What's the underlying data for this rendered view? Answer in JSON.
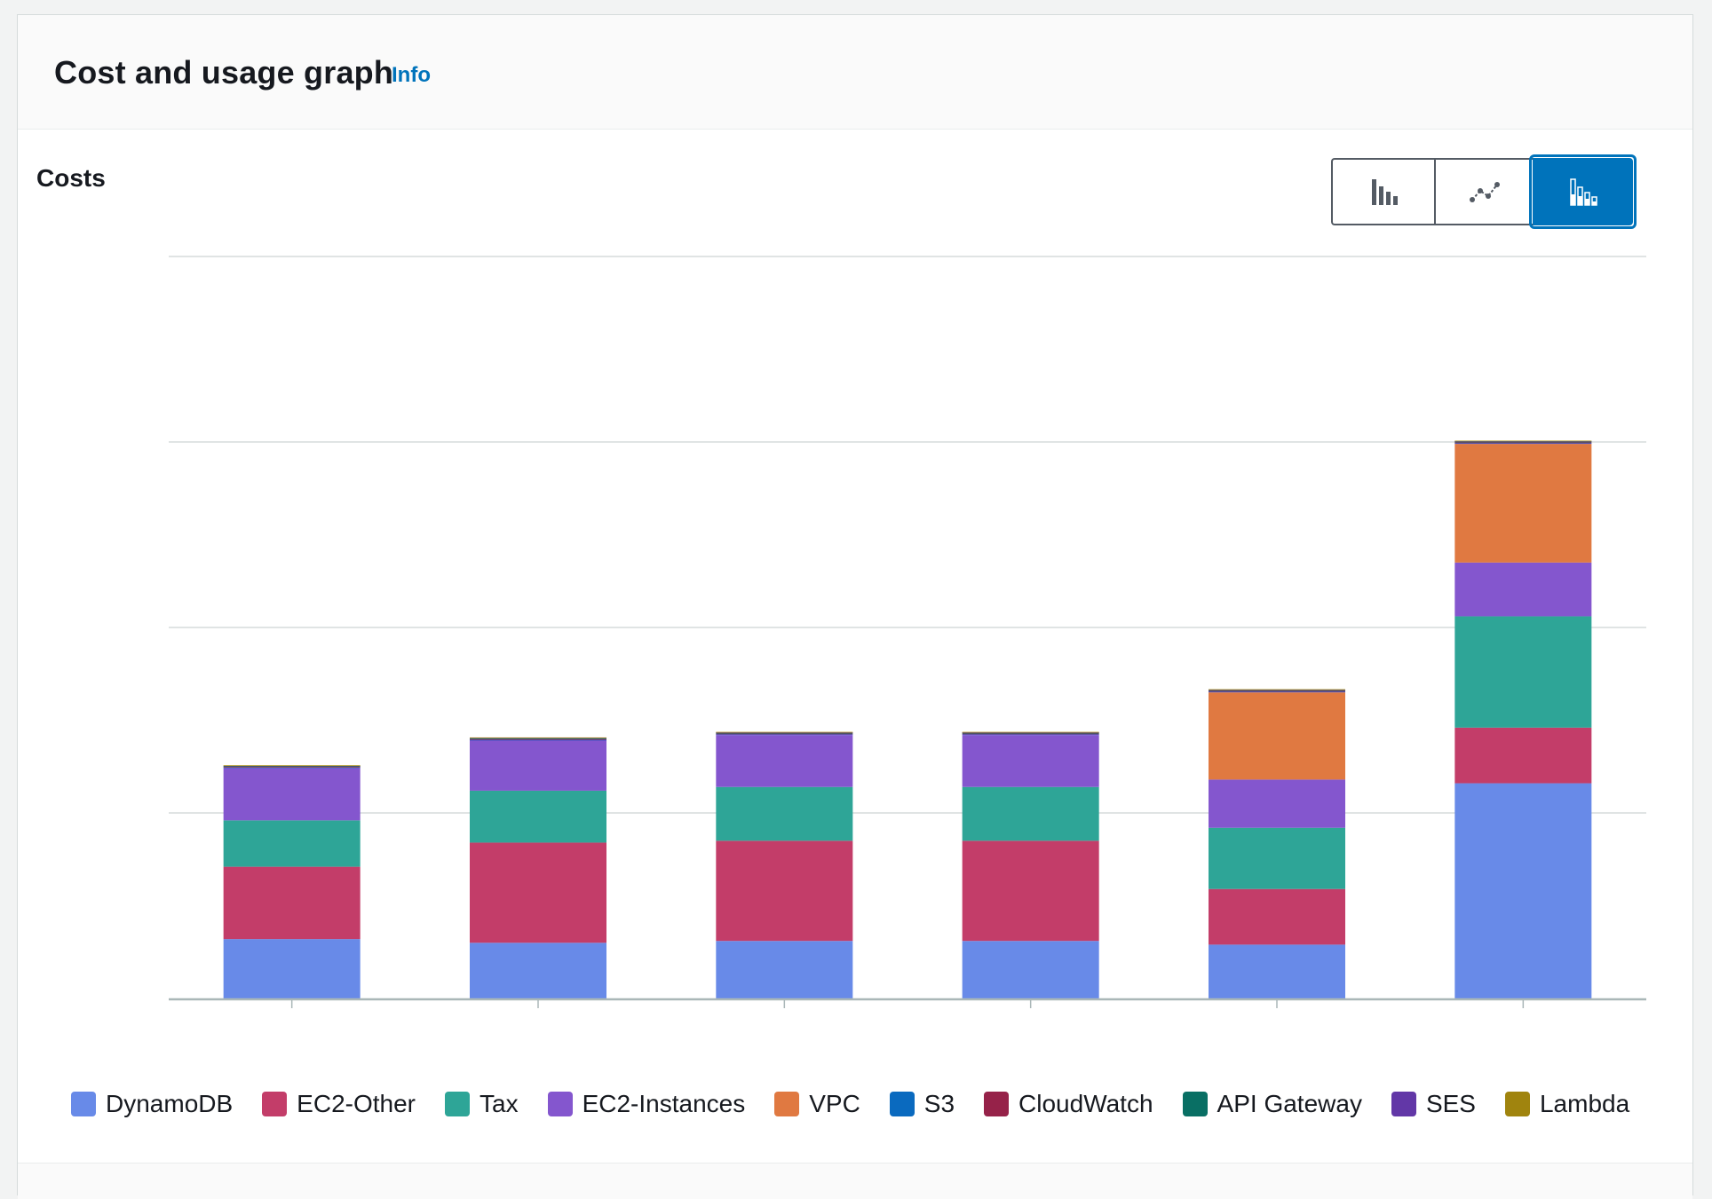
{
  "header": {
    "title": "Cost and usage graph",
    "info_link": "Info"
  },
  "section": {
    "title": "Costs"
  },
  "chart_type_toggle": {
    "options": [
      "bar-chart-icon",
      "line-chart-icon",
      "stacked-bar-chart-icon"
    ],
    "selected": "stacked-bar-chart-icon"
  },
  "chart_data": {
    "type": "bar",
    "stacked": true,
    "categories": [
      "",
      "",
      "",
      "",
      "",
      ""
    ],
    "ylim": [
      0,
      4
    ],
    "grid": true,
    "legend_placement": "bottom",
    "series": [
      {
        "name": "DynamoDB",
        "color": "#688ae8",
        "values": [
          0.32,
          0.3,
          0.31,
          0.31,
          0.29,
          1.16
        ]
      },
      {
        "name": "EC2-Other",
        "color": "#c33d69",
        "values": [
          0.39,
          0.54,
          0.54,
          0.54,
          0.3,
          0.3
        ]
      },
      {
        "name": "Tax",
        "color": "#2ea597",
        "values": [
          0.25,
          0.28,
          0.29,
          0.29,
          0.33,
          0.6
        ]
      },
      {
        "name": "EC2-Instances",
        "color": "#8456ce",
        "values": [
          0.28,
          0.27,
          0.28,
          0.28,
          0.26,
          0.29
        ]
      },
      {
        "name": "VPC",
        "color": "#e07941",
        "values": [
          0,
          0,
          0,
          0,
          0.47,
          0.64
        ]
      },
      {
        "name": "S3",
        "color": "#3759ce",
        "values": [
          0.005,
          0.005,
          0.005,
          0.005,
          0.005,
          0.005
        ]
      },
      {
        "name": "CloudWatch",
        "color": "#962249",
        "values": [
          0.003,
          0.003,
          0.003,
          0.003,
          0.003,
          0.003
        ]
      },
      {
        "name": "API Gateway",
        "color": "#096f64",
        "values": [
          0.004,
          0.004,
          0.004,
          0.004,
          0.004,
          0.004
        ]
      },
      {
        "name": "SES",
        "color": "#6237a7",
        "values": [
          0.003,
          0.003,
          0.003,
          0.003,
          0.003,
          0.003
        ]
      },
      {
        "name": "Lambda",
        "color": "#a78b06",
        "values": [
          0.002,
          0.002,
          0.002,
          0.002,
          0.002,
          0.002
        ]
      }
    ]
  },
  "legend": [
    {
      "label": "DynamoDB",
      "color": "#688ae8"
    },
    {
      "label": "EC2-Other",
      "color": "#c33d69"
    },
    {
      "label": "Tax",
      "color": "#2ea597"
    },
    {
      "label": "EC2-Instances",
      "color": "#8456ce"
    },
    {
      "label": "VPC",
      "color": "#e07941"
    },
    {
      "label": "S3",
      "color": "#0a6abf"
    },
    {
      "label": "CloudWatch",
      "color": "#962249"
    },
    {
      "label": "API Gateway",
      "color": "#096f64"
    },
    {
      "label": "SES",
      "color": "#6237a7"
    },
    {
      "label": "Lambda",
      "color": "#a0840e"
    }
  ]
}
